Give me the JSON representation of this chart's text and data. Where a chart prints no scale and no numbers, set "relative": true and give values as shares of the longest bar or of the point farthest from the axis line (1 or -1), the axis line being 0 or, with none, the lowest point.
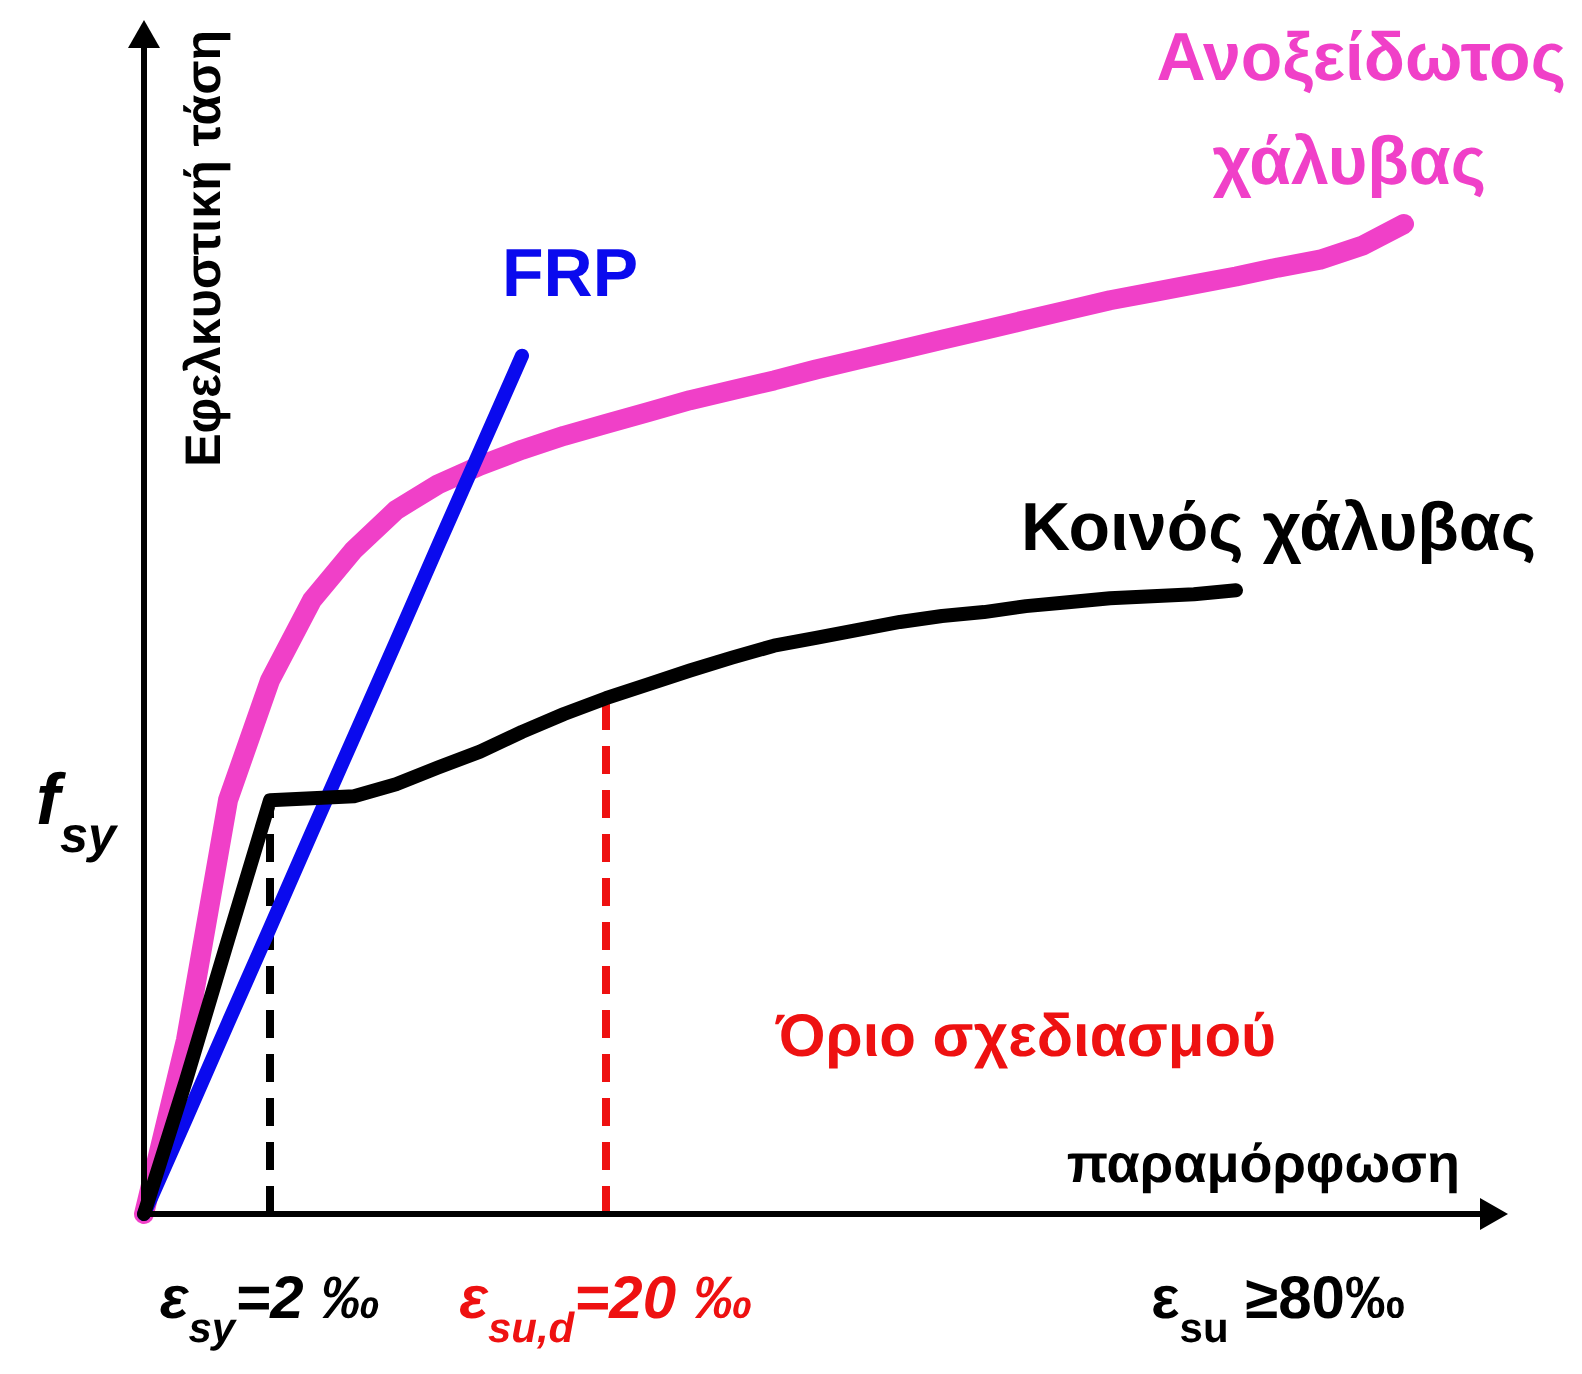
{
  "chart_data": {
    "type": "line",
    "relative": true,
    "xlabel": "παραμόρφωση",
    "ylabel": "Εφελκυστική τάση",
    "categories": [
      null,
      null,
      null,
      "ε$_{sy}$=2 ‰",
      null,
      null,
      null,
      null,
      null,
      null,
      null,
      "ε$_{su,d}$=20 ‰",
      null,
      null,
      null,
      null,
      null,
      null,
      null,
      null,
      null,
      null,
      null,
      null,
      null,
      null,
      null,
      "ε$_{su}$ ≥80‰",
      null,
      null,
      null,
      null
    ],
    "series": [
      {
        "name": "Ανοξείδωτος χάλυβας",
        "color": "#f040c8",
        "values": [
          0,
          0.176,
          0.418,
          0.539,
          0.62,
          0.671,
          0.711,
          0.737,
          0.756,
          0.772,
          0.786,
          0.798,
          0.81,
          0.822,
          0.832,
          0.842,
          0.853,
          0.863,
          0.873,
          0.883,
          0.893,
          0.903,
          0.913,
          0.923,
          0.931,
          0.939,
          0.947,
          0.956,
          0.964,
          0.978,
          1,
          null
        ]
      },
      {
        "name": "FRP",
        "color": "#0a0aee",
        "values": [
          0,
          0.096,
          0.193,
          0.289,
          0.386,
          0.482,
          0.578,
          0.675,
          0.771,
          0.867,
          null,
          null,
          null,
          null,
          null,
          null,
          null,
          null,
          null,
          null,
          null,
          null,
          null,
          null,
          null,
          null,
          null,
          null,
          null,
          null,
          null,
          null
        ]
      },
      {
        "name": "Κοινός χάλυβας",
        "color": "#000000",
        "values": [
          0,
          0.135,
          0.277,
          0.418,
          0.42,
          0.422,
          0.434,
          0.451,
          0.467,
          0.487,
          0.505,
          0.521,
          0.535,
          0.549,
          0.562,
          0.574,
          0.582,
          0.59,
          0.598,
          0.604,
          0.608,
          0.614,
          0.618,
          0.622,
          0.624,
          0.626,
          0.63,
          null,
          null,
          null,
          null,
          null
        ]
      }
    ],
    "ref_lines": [
      {
        "axis": "x",
        "value": "ε$_{sy}$=2 ‰",
        "color": "#000000",
        "line_style": "dashed"
      },
      {
        "axis": "x",
        "value": "ε$_{su,d}$=20 ‰",
        "color": "#ee1111",
        "line_style": "dashed"
      }
    ],
    "annotations": [
      "f$_{sy}$",
      {
        "text": "Όριο σχεδιασμού",
        "x": "ε$_{su,d}$=20 ‰"
      }
    ]
  }
}
